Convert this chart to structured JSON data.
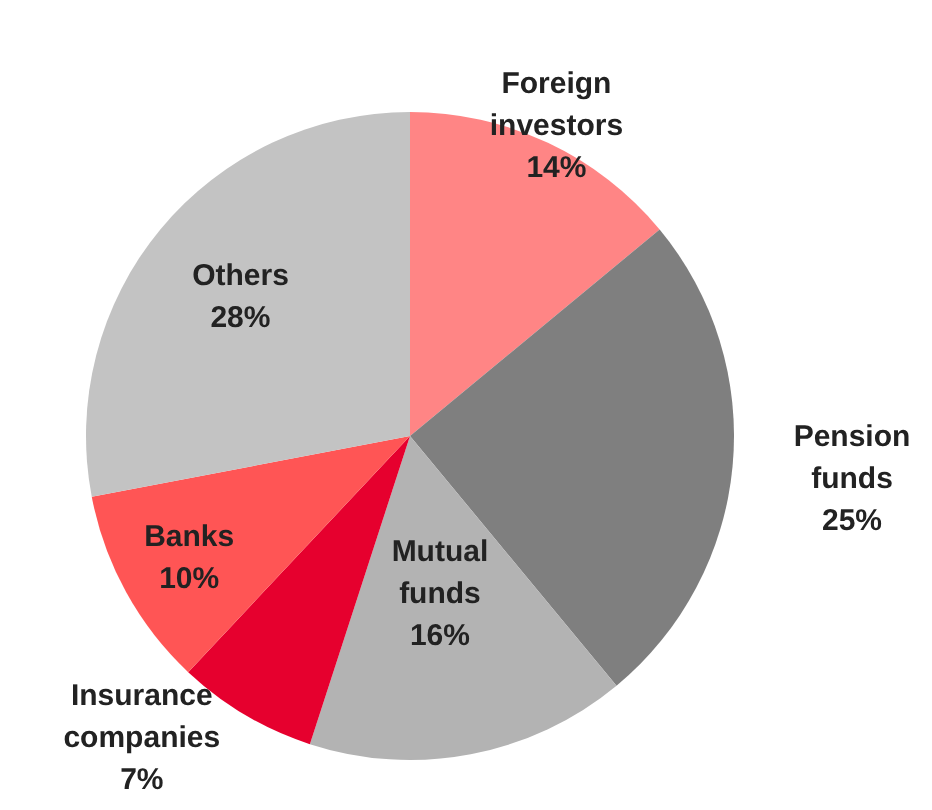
{
  "chart_data": {
    "type": "pie",
    "categories": [
      "Foreign investors",
      "Pension funds",
      "Mutual funds",
      "Insurance companies",
      "Banks",
      "Others"
    ],
    "values": [
      14,
      25,
      16,
      7,
      10,
      28
    ],
    "colors": [
      "#ff8585",
      "#7f7f7f",
      "#b3b3b3",
      "#e6002e",
      "#ff5555",
      "#c3c3c3"
    ],
    "value_labels": [
      "14%",
      "25%",
      "16%",
      "7%",
      "10%",
      "28%"
    ]
  }
}
